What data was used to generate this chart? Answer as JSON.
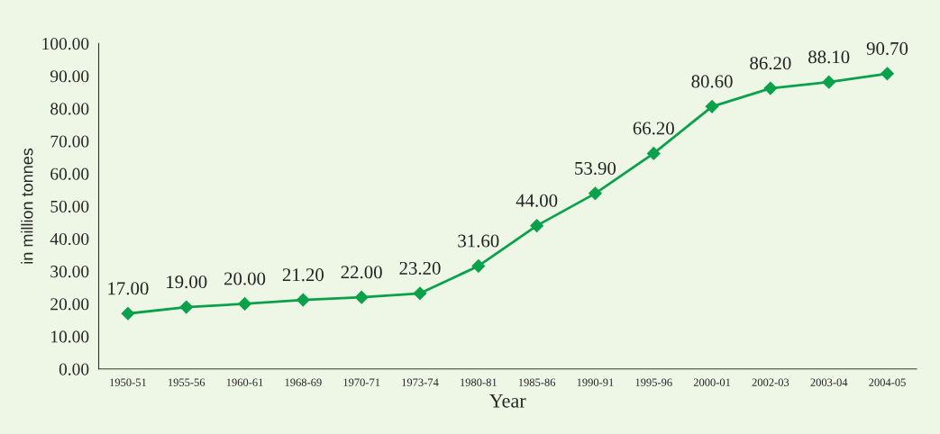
{
  "chart_data": {
    "type": "line",
    "xlabel": "Year",
    "ylabel": "in million tonnes",
    "categories": [
      "1950-51",
      "1955-56",
      "1960-61",
      "1968-69",
      "1970-71",
      "1973-74",
      "1980-81",
      "1985-86",
      "1990-91",
      "1995-96",
      "2000-01",
      "2002-03",
      "2003-04",
      "2004-05"
    ],
    "series": [
      {
        "color": "#0aa14b",
        "values": [
          17.0,
          19.0,
          20.0,
          21.2,
          22.0,
          23.2,
          31.6,
          44.0,
          53.9,
          66.2,
          80.6,
          86.2,
          88.1,
          90.7
        ],
        "value_labels": [
          "17.00",
          "19.00",
          "20.00",
          "21.20",
          "22.00",
          "23.20",
          "31.60",
          "44.00",
          "53.90",
          "66.20",
          "80.60",
          "86.20",
          "88.10",
          "90.70"
        ]
      }
    ],
    "ylim": [
      0,
      100
    ],
    "yticks": [
      {
        "value": 0,
        "label": "0.00"
      },
      {
        "value": 10,
        "label": "10.00"
      },
      {
        "value": 20,
        "label": "20.00"
      },
      {
        "value": 30,
        "label": "30.00"
      },
      {
        "value": 40,
        "label": "40.00"
      },
      {
        "value": 50,
        "label": "50.00"
      },
      {
        "value": 60,
        "label": "60.00"
      },
      {
        "value": 70,
        "label": "70.00"
      },
      {
        "value": 80,
        "label": "80.00"
      },
      {
        "value": 90,
        "label": "90.00"
      },
      {
        "value": 100,
        "label": "100.00"
      }
    ],
    "marker": "diamond",
    "line_style": "solid",
    "grid": false,
    "legend": false
  }
}
